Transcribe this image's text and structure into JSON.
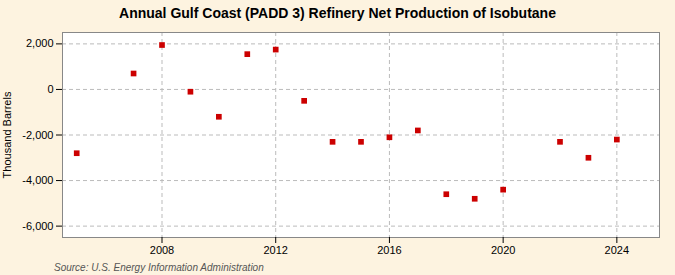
{
  "chart_data": {
    "type": "scatter",
    "title": "Annual Gulf Coast (PADD 3) Refinery Net Production of Isobutane",
    "ylabel": "Thousand Barrels",
    "source": "Source: U.S. Energy Information Administration",
    "x": [
      2005,
      2007,
      2008,
      2009,
      2010,
      2011,
      2012,
      2013,
      2014,
      2015,
      2016,
      2017,
      2018,
      2019,
      2020,
      2022,
      2023,
      2024
    ],
    "values": [
      -2800,
      700,
      1950,
      -100,
      -1200,
      1550,
      1750,
      -500,
      -2300,
      -2300,
      -2100,
      -1800,
      -4600,
      -4800,
      -4400,
      -2300,
      -3000,
      -2200
    ],
    "color": "#cc0000",
    "marker": "square",
    "xlim": [
      2004.5,
      2025.5
    ],
    "xticks": [
      2008,
      2012,
      2016,
      2020,
      2024
    ],
    "ylim": [
      -6500,
      2500
    ],
    "yticks": [
      {
        "value": -6000,
        "label": "-6,000"
      },
      {
        "value": -4000,
        "label": "-4,000"
      },
      {
        "value": -2000,
        "label": "-2,000"
      },
      0,
      {
        "value": 2000,
        "label": "2,000"
      }
    ],
    "grid": true
  }
}
